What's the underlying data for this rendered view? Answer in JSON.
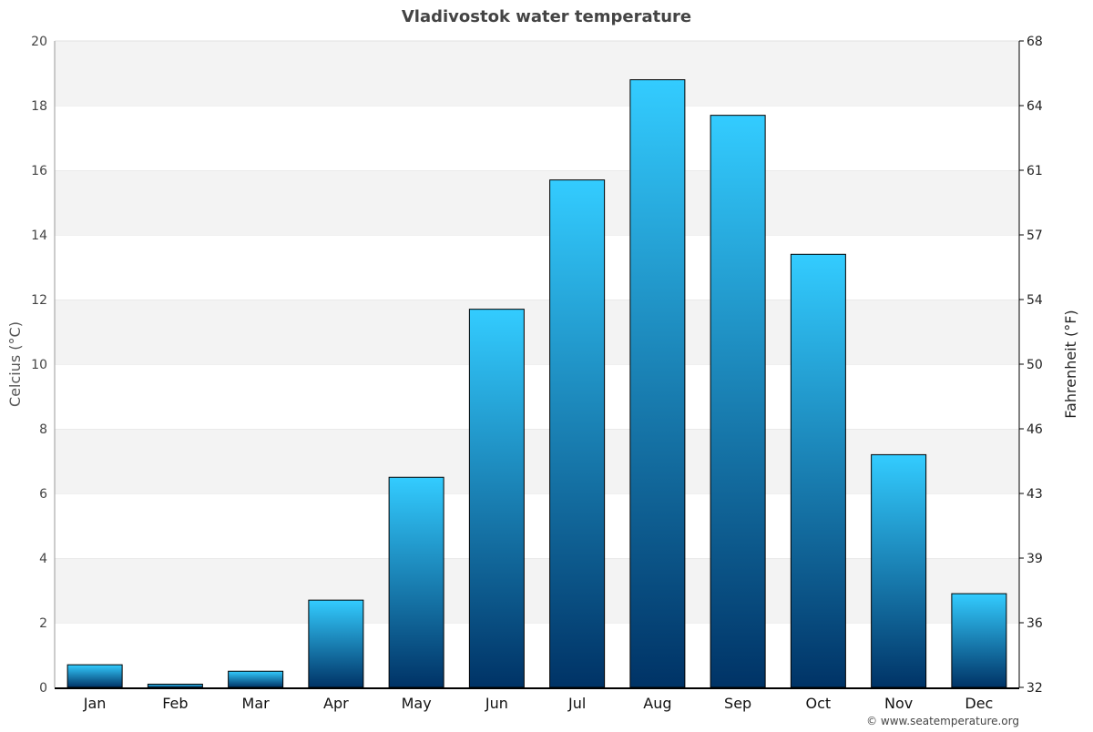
{
  "chart_data": {
    "type": "bar",
    "title": "Vladivostok water temperature",
    "ylabel": "Celcius (°C)",
    "ylabel_right": "Fahrenheit (°F)",
    "xlabel": "",
    "categories": [
      "Jan",
      "Feb",
      "Mar",
      "Apr",
      "May",
      "Jun",
      "Jul",
      "Aug",
      "Sep",
      "Oct",
      "Nov",
      "Dec"
    ],
    "values": [
      0.7,
      0.1,
      0.5,
      2.7,
      6.5,
      11.7,
      15.7,
      18.8,
      17.7,
      13.4,
      7.2,
      2.9
    ],
    "ylim": [
      0,
      20
    ],
    "yticks": [
      0,
      2,
      4,
      6,
      8,
      10,
      12,
      14,
      16,
      18,
      20
    ],
    "yticks_right": [
      "32",
      "36",
      "39",
      "43",
      "46",
      "50",
      "54",
      "57",
      "61",
      "64",
      "68"
    ],
    "grid": true,
    "legend": "none",
    "colors": {
      "bar_top": "#33ccff",
      "bar_bottom": "#003366",
      "band": "#f3f3f3"
    }
  },
  "credit": "© www.seatemperature.org"
}
